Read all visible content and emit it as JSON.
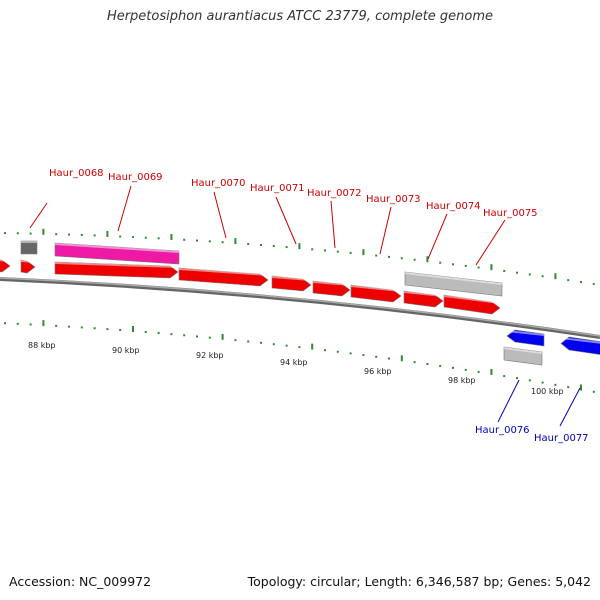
{
  "title": "Herpetosiphon aurantiacus ATCC 23779, complete genome",
  "footer": {
    "accession": "Accession: NC_009972",
    "summary": "Topology: circular; Length: 6,346,587 bp; Genes: 5,042"
  },
  "colors": {
    "forward_gene": "#ee0000",
    "reverse_gene": "#0000ee",
    "highlight_gene": "#ee1aa6",
    "pseudo_gene": "#bbbbbb",
    "dark_gene": "#666666",
    "backbone": "#888888",
    "ticks": "#2e8b2e",
    "forward_label": "#cc0000",
    "reverse_label": "#0000bb"
  },
  "scale_labels": [
    "88 kbp",
    "90 kbp",
    "92 kbp",
    "94 kbp",
    "96 kbp",
    "98 kbp",
    "100 kbp"
  ],
  "gene_labels": {
    "forward": [
      "Haur_0068",
      "Haur_0069",
      "Haur_0070",
      "Haur_0071",
      "Haur_0072",
      "Haur_0073",
      "Haur_0074",
      "Haur_0075"
    ],
    "reverse": [
      "Haur_0076",
      "Haur_0077"
    ]
  }
}
